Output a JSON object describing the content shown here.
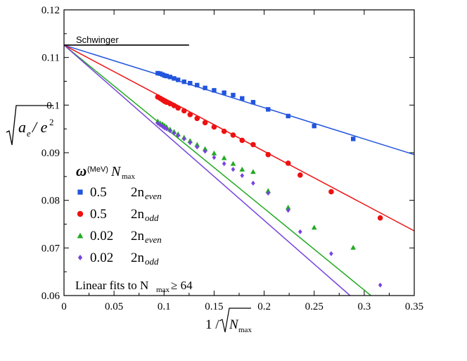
{
  "chart_data": {
    "type": "scatter",
    "title": "",
    "xlabel": "1/√N_max",
    "ylabel": "√(a_e / e²)",
    "xlim": [
      0,
      0.35
    ],
    "ylim": [
      0.06,
      0.12
    ],
    "x_ticks": [
      "0",
      "0.05",
      "0.1",
      "0.15",
      "0.2",
      "0.25",
      "0.3",
      "0.35"
    ],
    "y_ticks": [
      "0.06",
      "0.07",
      "0.08",
      "0.09",
      "0.1",
      "0.11",
      "0.12"
    ],
    "x_tick_values": [
      0,
      0.05,
      0.1,
      0.15,
      0.2,
      0.25,
      0.3,
      0.35
    ],
    "y_tick_values": [
      0.06,
      0.07,
      0.08,
      0.09,
      0.1,
      0.11,
      0.12
    ],
    "reference_line": {
      "label": "Schwinger",
      "y": 0.1126,
      "x_range": [
        0,
        0.125
      ]
    },
    "legend": {
      "header_omega": "ω",
      "header_unit": "(MeV)",
      "header_n": "N",
      "header_n_sub": "max",
      "fit_note": "Linear fits to N",
      "fit_note_sub": "max",
      "fit_note_tail": "≥ 64"
    },
    "series": [
      {
        "name": "0.5 2n_even",
        "omega": "0.5",
        "n_main": "2n",
        "n_sub": "even",
        "color": "#2255dd",
        "marker": "square",
        "x": [
          0.0937,
          0.0962,
          0.0985,
          0.1005,
          0.1025,
          0.106,
          0.11,
          0.114,
          0.12,
          0.126,
          0.133,
          0.141,
          0.15,
          0.16,
          0.169,
          0.178,
          0.189,
          0.204,
          0.224,
          0.25,
          0.289
        ],
        "y": [
          0.1067,
          0.1066,
          0.1064,
          0.1062,
          0.1061,
          0.1059,
          0.1056,
          0.1053,
          0.1049,
          0.1046,
          0.1042,
          0.1036,
          0.1031,
          0.1026,
          0.1021,
          0.1014,
          0.1006,
          0.0991,
          0.0977,
          0.0956,
          0.0929
        ],
        "fit": {
          "intercept": 0.1126,
          "slope": -0.0657
        }
      },
      {
        "name": "0.5 2n_odd",
        "omega": "0.5",
        "n_main": "2n",
        "n_sub": "odd",
        "color": "#ee1111",
        "marker": "circle",
        "x": [
          0.0937,
          0.0962,
          0.0985,
          0.1005,
          0.1025,
          0.106,
          0.11,
          0.114,
          0.12,
          0.126,
          0.133,
          0.141,
          0.15,
          0.16,
          0.169,
          0.178,
          0.189,
          0.204,
          0.224,
          0.236,
          0.267,
          0.316
        ],
        "y": [
          0.1017,
          0.1014,
          0.1011,
          0.1008,
          0.1006,
          0.1003,
          0.0999,
          0.0994,
          0.0988,
          0.098,
          0.0972,
          0.0963,
          0.0954,
          0.0945,
          0.0937,
          0.0926,
          0.0917,
          0.0896,
          0.0878,
          0.0853,
          0.0818,
          0.0763
        ],
        "fit": {
          "intercept": 0.1126,
          "slope": -0.1115
        }
      },
      {
        "name": "0.02 2n_even",
        "omega": "0.02",
        "n_main": "2n",
        "n_sub": "even",
        "color": "#22aa22",
        "marker": "triangle",
        "x": [
          0.0937,
          0.0962,
          0.0985,
          0.1005,
          0.1025,
          0.106,
          0.11,
          0.114,
          0.12,
          0.126,
          0.133,
          0.141,
          0.15,
          0.16,
          0.169,
          0.178,
          0.189,
          0.204,
          0.224,
          0.25,
          0.289
        ],
        "y": [
          0.0966,
          0.0962,
          0.096,
          0.0957,
          0.0954,
          0.0949,
          0.0944,
          0.0939,
          0.0932,
          0.0925,
          0.0917,
          0.0908,
          0.0899,
          0.0889,
          0.0877,
          0.0865,
          0.086,
          0.082,
          0.0785,
          0.0743,
          0.0701
        ],
        "fit": {
          "intercept": 0.1126,
          "slope": -0.1715
        }
      },
      {
        "name": "0.02 2n_odd",
        "omega": "0.02",
        "n_main": "2n",
        "n_sub": "odd",
        "color": "#7744dd",
        "marker": "diamond",
        "x": [
          0.0937,
          0.0962,
          0.0985,
          0.1005,
          0.1025,
          0.106,
          0.11,
          0.114,
          0.12,
          0.126,
          0.133,
          0.141,
          0.15,
          0.16,
          0.169,
          0.178,
          0.189,
          0.204,
          0.224,
          0.236,
          0.267,
          0.316
        ],
        "y": [
          0.0962,
          0.0958,
          0.0955,
          0.0952,
          0.095,
          0.0946,
          0.0941,
          0.0936,
          0.0929,
          0.0921,
          0.0912,
          0.0903,
          0.089,
          0.0877,
          0.0865,
          0.0852,
          0.0836,
          0.0815,
          0.0779,
          0.0734,
          0.0688,
          0.0622
        ],
        "fit": {
          "intercept": 0.1126,
          "slope": -0.184
        }
      }
    ]
  }
}
